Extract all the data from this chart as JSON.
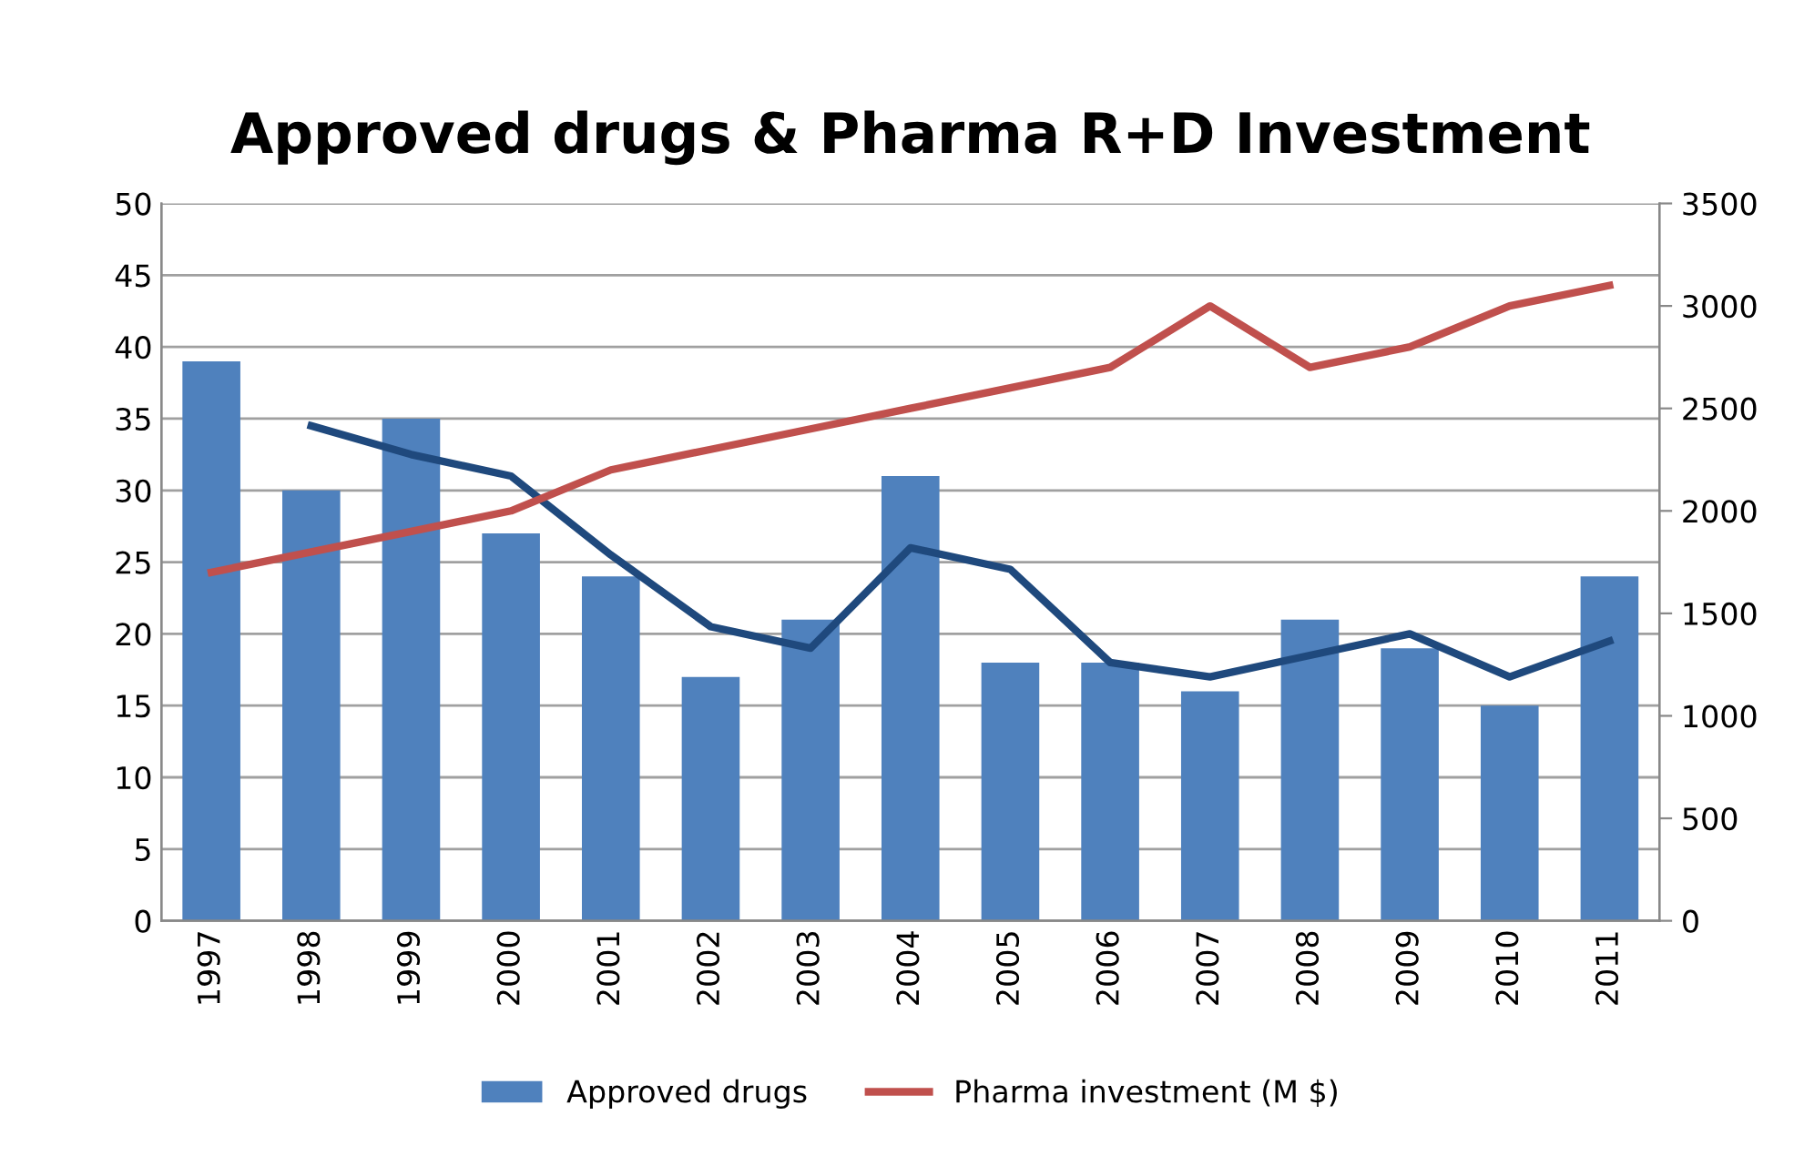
{
  "chart_data": {
    "type": "bar",
    "title": "Approved drugs & Pharma R+D Investment",
    "categories": [
      "1997",
      "1998",
      "1999",
      "2000",
      "2001",
      "2002",
      "2003",
      "2004",
      "2005",
      "2006",
      "2007",
      "2008",
      "2009",
      "2010",
      "2011"
    ],
    "series": [
      {
        "name": "Approved drugs",
        "color": "#4f81bd",
        "values": [
          39,
          30,
          35,
          27,
          24,
          17,
          21,
          31,
          18,
          18,
          16,
          21,
          19,
          15,
          24
        ]
      },
      {
        "name": "Pharma investment (M $)",
        "type": "line",
        "axis": "y2",
        "color": "#c0504d",
        "values": [
          1700,
          1800,
          1900,
          2000,
          2200,
          2300,
          2400,
          2500,
          2600,
          2700,
          3000,
          2700,
          2800,
          3000,
          3100
        ]
      },
      {
        "type": "line",
        "color": "#1f497d",
        "values": [
          null,
          34.5,
          32.5,
          31,
          25.5,
          20.5,
          19,
          26,
          24.5,
          18,
          17,
          18.5,
          20,
          17,
          19.5
        ]
      }
    ],
    "ylim": [
      0,
      50
    ],
    "yticks": [
      0,
      5,
      10,
      15,
      20,
      25,
      30,
      35,
      40,
      45,
      50
    ],
    "y2lim": [
      0,
      3500
    ],
    "y2ticks": [
      0,
      500,
      1000,
      1500,
      2000,
      2500,
      3000,
      3500
    ],
    "grid": "y",
    "legend": "bottom"
  }
}
